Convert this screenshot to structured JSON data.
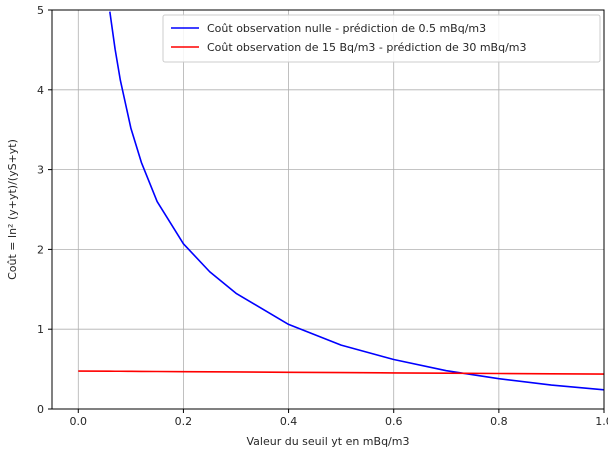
{
  "chart_data": {
    "type": "line",
    "xlabel": "Valeur du seuil yt en mBq/m3",
    "ylabel": "Coût = ln² (y+yt)/(yS+yt)",
    "xlim": [
      -0.05,
      1.0
    ],
    "ylim": [
      0,
      5
    ],
    "x_ticks": [
      0.0,
      0.2,
      0.4,
      0.6,
      0.8,
      1.0
    ],
    "x_tick_labels": [
      "0.0",
      "0.2",
      "0.4",
      "0.6",
      "0.8",
      "1.0"
    ],
    "y_ticks": [
      0,
      1,
      2,
      3,
      4,
      5
    ],
    "y_tick_labels": [
      "0",
      "1",
      "2",
      "3",
      "4",
      "5"
    ],
    "grid": true,
    "legend_position": "top-right",
    "x": [
      0.06,
      0.07,
      0.08,
      0.1,
      0.12,
      0.15,
      0.2,
      0.25,
      0.3,
      0.4,
      0.5,
      0.6,
      0.7,
      0.8,
      0.9,
      1.0
    ],
    "series": [
      {
        "name": "Coût observation nulle - prédiction de 0.5 mBq/m3",
        "color": "#0000ff",
        "values": [
          4.98,
          4.51,
          4.12,
          3.52,
          3.09,
          2.6,
          2.07,
          1.72,
          1.45,
          1.06,
          0.8,
          0.62,
          0.48,
          0.38,
          0.3,
          0.24
        ]
      },
      {
        "name": "Coût observation de 15 Bq/m3 - prédiction de 30 mBq/m3",
        "color": "#ff0000",
        "values": [
          0.474,
          0.473,
          0.473,
          0.472,
          0.471,
          0.47,
          0.468,
          0.466,
          0.464,
          0.46,
          0.456,
          0.452,
          0.449,
          0.445,
          0.441,
          0.438
        ]
      }
    ]
  }
}
